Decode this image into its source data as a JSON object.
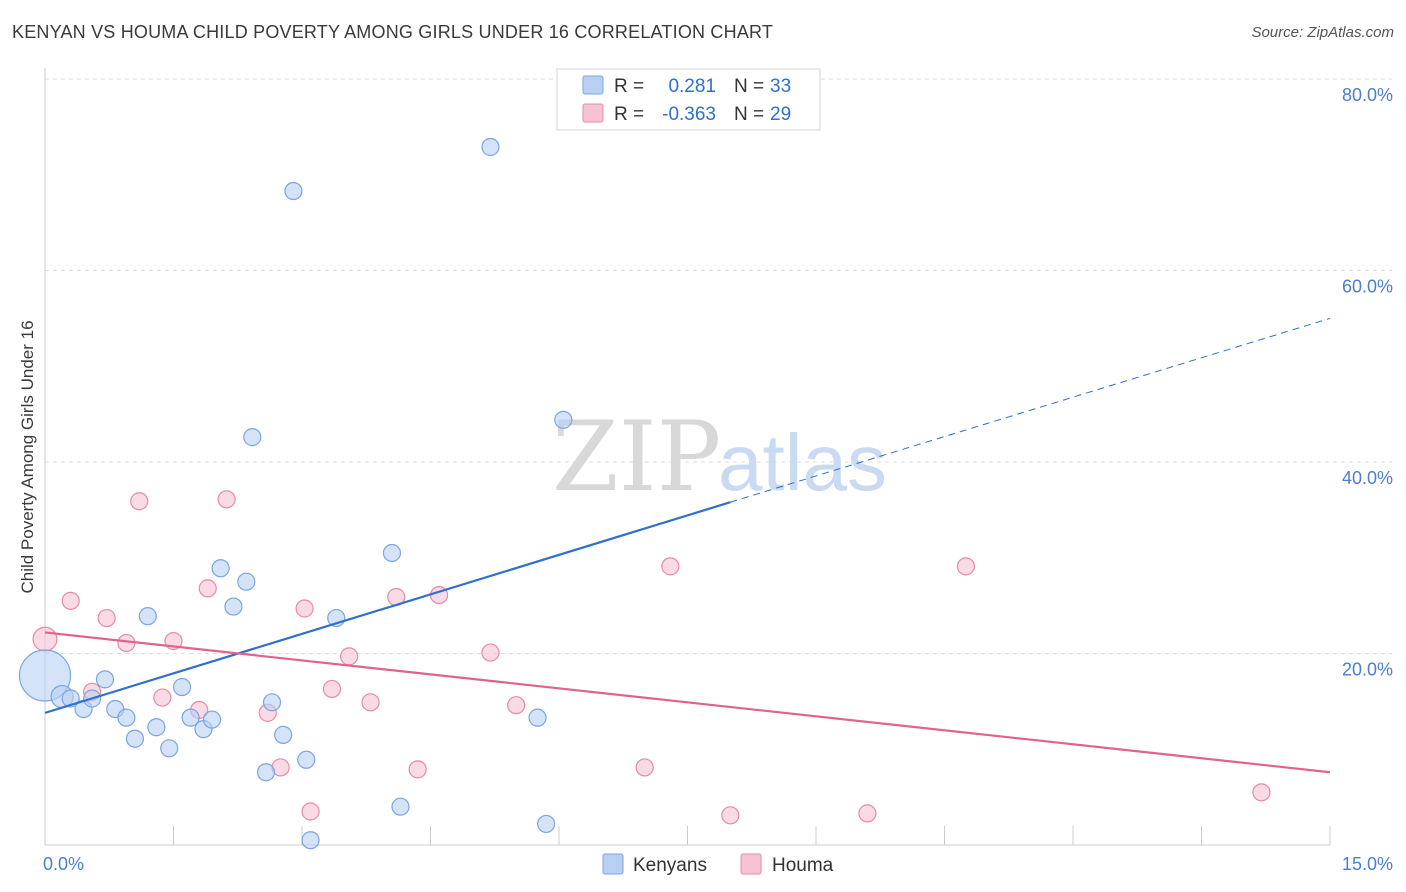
{
  "title": "KENYAN VS HOUMA CHILD POVERTY AMONG GIRLS UNDER 16 CORRELATION CHART",
  "source": "Source: ZipAtlas.com",
  "watermark": {
    "zip": "ZIP",
    "atlas": "atlas"
  },
  "colors": {
    "kenyans_fill": "#b7d0f2",
    "kenyans_stroke": "#7aa6e0",
    "kenyans_line": "#2f6fd0",
    "houma_fill": "#f6c3d4",
    "houma_stroke": "#e88aa8",
    "houma_line": "#e0628d",
    "grid": "#dddddd",
    "tick_text": "#4a7fd0"
  },
  "legend": {
    "rows": [
      {
        "r_label": "R =",
        "r_value": "0.281",
        "n_label": "N =",
        "n_value": "33"
      },
      {
        "r_label": "R =",
        "r_value": "-0.363",
        "n_label": "N =",
        "n_value": "29"
      }
    ]
  },
  "chart_data": {
    "type": "scatter",
    "xlabel": "",
    "ylabel": "Child Poverty Among Girls Under 16",
    "xlim": [
      0,
      15
    ],
    "ylim": [
      0,
      80
    ],
    "x_tick_labels": [
      "0.0%",
      "15.0%"
    ],
    "y_tick_labels": [
      "20.0%",
      "40.0%",
      "60.0%",
      "80.0%"
    ],
    "y_ticks": [
      20,
      40,
      60,
      80
    ],
    "grid": true,
    "legend_position": "bottom-center",
    "series": [
      {
        "name": "Kenyans",
        "points": [
          {
            "x": 0.0,
            "y": 17.7,
            "s": 3.0
          },
          {
            "x": 0.2,
            "y": 15.5,
            "s": 1.3
          },
          {
            "x": 0.3,
            "y": 15.3,
            "s": 1.0
          },
          {
            "x": 0.45,
            "y": 14.2,
            "s": 1.0
          },
          {
            "x": 0.55,
            "y": 15.3,
            "s": 1.0
          },
          {
            "x": 0.7,
            "y": 17.3,
            "s": 1.0
          },
          {
            "x": 0.82,
            "y": 14.2,
            "s": 1.0
          },
          {
            "x": 0.95,
            "y": 13.3,
            "s": 1.0
          },
          {
            "x": 1.05,
            "y": 11.1,
            "s": 1.0
          },
          {
            "x": 1.2,
            "y": 23.9,
            "s": 1.0
          },
          {
            "x": 1.3,
            "y": 12.3,
            "s": 1.0
          },
          {
            "x": 1.45,
            "y": 10.1,
            "s": 1.0
          },
          {
            "x": 1.6,
            "y": 16.5,
            "s": 1.0
          },
          {
            "x": 1.7,
            "y": 13.3,
            "s": 1.0
          },
          {
            "x": 1.85,
            "y": 12.1,
            "s": 1.0
          },
          {
            "x": 1.95,
            "y": 13.1,
            "s": 1.0
          },
          {
            "x": 2.05,
            "y": 28.9,
            "s": 1.0
          },
          {
            "x": 2.2,
            "y": 24.9,
            "s": 1.0
          },
          {
            "x": 2.35,
            "y": 27.5,
            "s": 1.0
          },
          {
            "x": 2.42,
            "y": 42.6,
            "s": 1.0
          },
          {
            "x": 2.58,
            "y": 7.6,
            "s": 1.0
          },
          {
            "x": 2.65,
            "y": 14.9,
            "s": 1.0
          },
          {
            "x": 2.78,
            "y": 11.5,
            "s": 1.0
          },
          {
            "x": 2.9,
            "y": 68.3,
            "s": 1.0
          },
          {
            "x": 3.05,
            "y": 8.9,
            "s": 1.0
          },
          {
            "x": 3.1,
            "y": 0.5,
            "s": 1.0
          },
          {
            "x": 3.4,
            "y": 23.7,
            "s": 1.0
          },
          {
            "x": 4.05,
            "y": 30.5,
            "s": 1.0
          },
          {
            "x": 4.15,
            "y": 4.0,
            "s": 1.0
          },
          {
            "x": 5.2,
            "y": 72.9,
            "s": 1.0
          },
          {
            "x": 5.75,
            "y": 13.3,
            "s": 1.0
          },
          {
            "x": 5.85,
            "y": 2.2,
            "s": 1.0
          },
          {
            "x": 6.05,
            "y": 44.4,
            "s": 1.0
          }
        ],
        "trend": {
          "x0": 0.0,
          "y0": 13.8,
          "x1": 8.0,
          "y1": 35.8,
          "dash_x1": 15.0,
          "dash_y1": 55.0
        }
      },
      {
        "name": "Houma",
        "points": [
          {
            "x": 0.0,
            "y": 21.5,
            "s": 1.4
          },
          {
            "x": 0.3,
            "y": 25.5,
            "s": 1.0
          },
          {
            "x": 0.55,
            "y": 16.0,
            "s": 1.0
          },
          {
            "x": 0.72,
            "y": 23.7,
            "s": 1.0
          },
          {
            "x": 0.95,
            "y": 21.1,
            "s": 1.0
          },
          {
            "x": 1.1,
            "y": 35.9,
            "s": 1.0
          },
          {
            "x": 1.37,
            "y": 15.4,
            "s": 1.0
          },
          {
            "x": 1.5,
            "y": 21.3,
            "s": 1.0
          },
          {
            "x": 1.8,
            "y": 14.1,
            "s": 1.0
          },
          {
            "x": 1.9,
            "y": 26.8,
            "s": 1.0
          },
          {
            "x": 2.12,
            "y": 36.1,
            "s": 1.0
          },
          {
            "x": 2.6,
            "y": 13.8,
            "s": 1.0
          },
          {
            "x": 2.75,
            "y": 8.1,
            "s": 1.0
          },
          {
            "x": 3.03,
            "y": 24.7,
            "s": 1.0
          },
          {
            "x": 3.1,
            "y": 3.5,
            "s": 1.0
          },
          {
            "x": 3.35,
            "y": 16.3,
            "s": 1.0
          },
          {
            "x": 3.55,
            "y": 19.7,
            "s": 1.0
          },
          {
            "x": 3.8,
            "y": 14.9,
            "s": 1.0
          },
          {
            "x": 4.1,
            "y": 25.9,
            "s": 1.0
          },
          {
            "x": 4.35,
            "y": 7.9,
            "s": 1.0
          },
          {
            "x": 4.6,
            "y": 26.1,
            "s": 1.0
          },
          {
            "x": 5.2,
            "y": 20.1,
            "s": 1.0
          },
          {
            "x": 5.5,
            "y": 14.6,
            "s": 1.0
          },
          {
            "x": 7.0,
            "y": 8.1,
            "s": 1.0
          },
          {
            "x": 7.3,
            "y": 29.1,
            "s": 1.0
          },
          {
            "x": 8.0,
            "y": 3.1,
            "s": 1.0
          },
          {
            "x": 9.6,
            "y": 3.3,
            "s": 1.0
          },
          {
            "x": 10.75,
            "y": 29.1,
            "s": 1.0
          },
          {
            "x": 14.2,
            "y": 5.5,
            "s": 1.0
          }
        ],
        "trend": {
          "x0": 0.0,
          "y0": 22.2,
          "x1": 15.0,
          "y1": 7.6
        }
      }
    ]
  }
}
